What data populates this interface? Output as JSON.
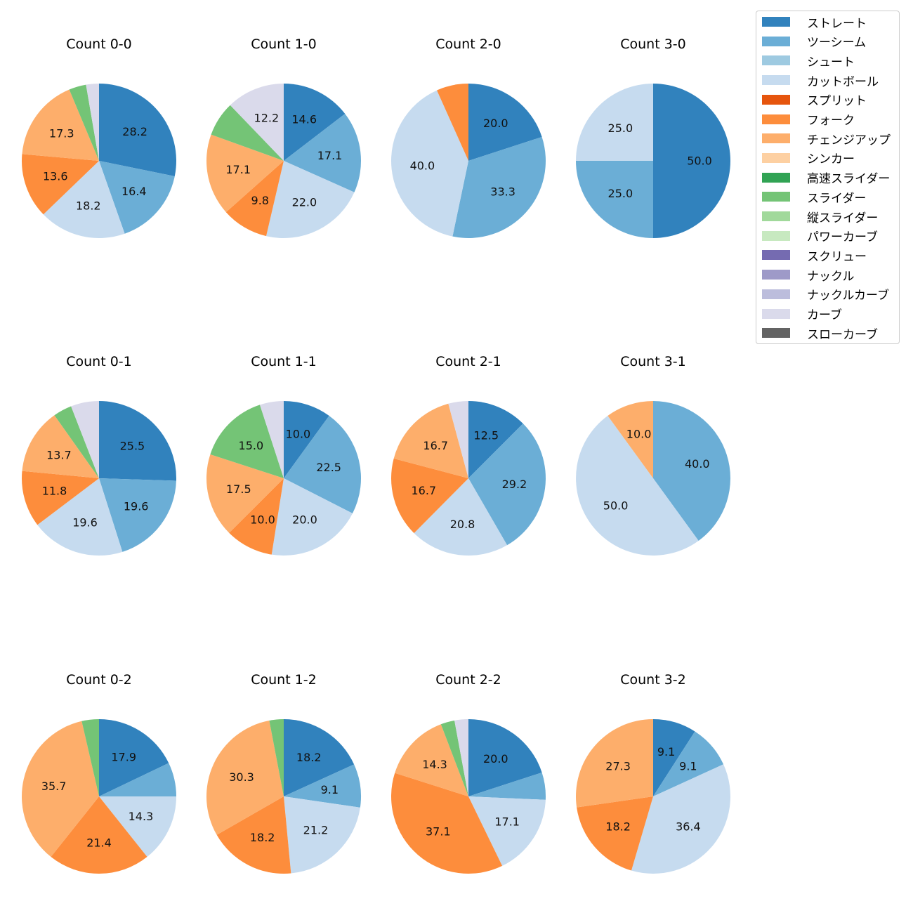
{
  "chart_data": {
    "type": "pie",
    "legend": {
      "placement": "top-right",
      "entries": [
        {
          "label": "ストレート",
          "color": "#3182bd"
        },
        {
          "label": "ツーシーム",
          "color": "#6baed6"
        },
        {
          "label": "シュート",
          "color": "#9ecae1"
        },
        {
          "label": "カットボール",
          "color": "#c6dbef"
        },
        {
          "label": "スプリット",
          "color": "#e6550d"
        },
        {
          "label": "フォーク",
          "color": "#fd8d3c"
        },
        {
          "label": "チェンジアップ",
          "color": "#fdae6b"
        },
        {
          "label": "シンカー",
          "color": "#fdd0a2"
        },
        {
          "label": "高速スライダー",
          "color": "#31a354"
        },
        {
          "label": "スライダー",
          "color": "#74c476"
        },
        {
          "label": "縦スライダー",
          "color": "#a1d99b"
        },
        {
          "label": "パワーカーブ",
          "color": "#c7e9c0"
        },
        {
          "label": "スクリュー",
          "color": "#756bb1"
        },
        {
          "label": "ナックル",
          "color": "#9e9ac8"
        },
        {
          "label": "ナックルカーブ",
          "color": "#bcbddc"
        },
        {
          "label": "カーブ",
          "color": "#dadaeb"
        },
        {
          "label": "スローカーブ",
          "color": "#636363"
        }
      ]
    },
    "pies": [
      {
        "title": "Count 0-0",
        "slices": [
          {
            "pitch": "ストレート",
            "value": 28.2,
            "label": "28.2"
          },
          {
            "pitch": "ツーシーム",
            "value": 16.4,
            "label": "16.4"
          },
          {
            "pitch": "カットボール",
            "value": 18.2,
            "label": "18.2"
          },
          {
            "pitch": "フォーク",
            "value": 13.6,
            "label": "13.6"
          },
          {
            "pitch": "チェンジアップ",
            "value": 17.3,
            "label": "17.3"
          },
          {
            "pitch": "スライダー",
            "value": 3.6,
            "label": ""
          },
          {
            "pitch": "カーブ",
            "value": 2.7,
            "label": ""
          }
        ]
      },
      {
        "title": "Count 1-0",
        "slices": [
          {
            "pitch": "ストレート",
            "value": 14.6,
            "label": "14.6"
          },
          {
            "pitch": "ツーシーム",
            "value": 17.1,
            "label": "17.1"
          },
          {
            "pitch": "カットボール",
            "value": 22.0,
            "label": "22.0"
          },
          {
            "pitch": "フォーク",
            "value": 9.8,
            "label": "9.8"
          },
          {
            "pitch": "チェンジアップ",
            "value": 17.1,
            "label": "17.1"
          },
          {
            "pitch": "スライダー",
            "value": 7.3,
            "label": ""
          },
          {
            "pitch": "カーブ",
            "value": 12.2,
            "label": "12.2"
          }
        ]
      },
      {
        "title": "Count 2-0",
        "slices": [
          {
            "pitch": "ストレート",
            "value": 20.0,
            "label": "20.0"
          },
          {
            "pitch": "ツーシーム",
            "value": 33.3,
            "label": "33.3"
          },
          {
            "pitch": "カットボール",
            "value": 40.0,
            "label": "40.0"
          },
          {
            "pitch": "フォーク",
            "value": 6.7,
            "label": ""
          }
        ]
      },
      {
        "title": "Count 3-0",
        "slices": [
          {
            "pitch": "ストレート",
            "value": 50.0,
            "label": "50.0"
          },
          {
            "pitch": "ツーシーム",
            "value": 25.0,
            "label": "25.0"
          },
          {
            "pitch": "カットボール",
            "value": 25.0,
            "label": "25.0"
          }
        ]
      },
      {
        "title": "Count 0-1",
        "slices": [
          {
            "pitch": "ストレート",
            "value": 25.5,
            "label": "25.5"
          },
          {
            "pitch": "ツーシーム",
            "value": 19.6,
            "label": "19.6"
          },
          {
            "pitch": "カットボール",
            "value": 19.6,
            "label": "19.6"
          },
          {
            "pitch": "フォーク",
            "value": 11.8,
            "label": "11.8"
          },
          {
            "pitch": "チェンジアップ",
            "value": 13.7,
            "label": "13.7"
          },
          {
            "pitch": "スライダー",
            "value": 3.9,
            "label": ""
          },
          {
            "pitch": "カーブ",
            "value": 5.9,
            "label": ""
          }
        ]
      },
      {
        "title": "Count 1-1",
        "slices": [
          {
            "pitch": "ストレート",
            "value": 10.0,
            "label": "10.0"
          },
          {
            "pitch": "ツーシーム",
            "value": 22.5,
            "label": "22.5"
          },
          {
            "pitch": "カットボール",
            "value": 20.0,
            "label": "20.0"
          },
          {
            "pitch": "フォーク",
            "value": 10.0,
            "label": "10.0"
          },
          {
            "pitch": "チェンジアップ",
            "value": 17.5,
            "label": "17.5"
          },
          {
            "pitch": "スライダー",
            "value": 15.0,
            "label": "15.0"
          },
          {
            "pitch": "カーブ",
            "value": 5.0,
            "label": ""
          }
        ]
      },
      {
        "title": "Count 2-1",
        "slices": [
          {
            "pitch": "ストレート",
            "value": 12.5,
            "label": "12.5"
          },
          {
            "pitch": "ツーシーム",
            "value": 29.2,
            "label": "29.2"
          },
          {
            "pitch": "カットボール",
            "value": 20.8,
            "label": "20.8"
          },
          {
            "pitch": "フォーク",
            "value": 16.7,
            "label": "16.7"
          },
          {
            "pitch": "チェンジアップ",
            "value": 16.7,
            "label": "16.7"
          },
          {
            "pitch": "カーブ",
            "value": 4.2,
            "label": ""
          }
        ]
      },
      {
        "title": "Count 3-1",
        "slices": [
          {
            "pitch": "ツーシーム",
            "value": 40.0,
            "label": "40.0"
          },
          {
            "pitch": "カットボール",
            "value": 50.0,
            "label": "50.0"
          },
          {
            "pitch": "チェンジアップ",
            "value": 10.0,
            "label": "10.0"
          }
        ]
      },
      {
        "title": "Count 0-2",
        "slices": [
          {
            "pitch": "ストレート",
            "value": 17.9,
            "label": "17.9"
          },
          {
            "pitch": "ツーシーム",
            "value": 7.1,
            "label": ""
          },
          {
            "pitch": "カットボール",
            "value": 14.3,
            "label": "14.3"
          },
          {
            "pitch": "フォーク",
            "value": 21.4,
            "label": "21.4"
          },
          {
            "pitch": "チェンジアップ",
            "value": 35.7,
            "label": "35.7"
          },
          {
            "pitch": "スライダー",
            "value": 3.6,
            "label": ""
          }
        ]
      },
      {
        "title": "Count 1-2",
        "slices": [
          {
            "pitch": "ストレート",
            "value": 18.2,
            "label": "18.2"
          },
          {
            "pitch": "ツーシーム",
            "value": 9.1,
            "label": "9.1"
          },
          {
            "pitch": "カットボール",
            "value": 21.2,
            "label": "21.2"
          },
          {
            "pitch": "フォーク",
            "value": 18.2,
            "label": "18.2"
          },
          {
            "pitch": "チェンジアップ",
            "value": 30.3,
            "label": "30.3"
          },
          {
            "pitch": "スライダー",
            "value": 3.0,
            "label": ""
          }
        ]
      },
      {
        "title": "Count 2-2",
        "slices": [
          {
            "pitch": "ストレート",
            "value": 20.0,
            "label": "20.0"
          },
          {
            "pitch": "ツーシーム",
            "value": 5.7,
            "label": ""
          },
          {
            "pitch": "カットボール",
            "value": 17.1,
            "label": "17.1"
          },
          {
            "pitch": "フォーク",
            "value": 37.1,
            "label": "37.1"
          },
          {
            "pitch": "チェンジアップ",
            "value": 14.3,
            "label": "14.3"
          },
          {
            "pitch": "スライダー",
            "value": 2.9,
            "label": ""
          },
          {
            "pitch": "カーブ",
            "value": 2.9,
            "label": ""
          }
        ]
      },
      {
        "title": "Count 3-2",
        "slices": [
          {
            "pitch": "ストレート",
            "value": 9.1,
            "label": "9.1"
          },
          {
            "pitch": "ツーシーム",
            "value": 9.1,
            "label": "9.1"
          },
          {
            "pitch": "カットボール",
            "value": 36.4,
            "label": "36.4"
          },
          {
            "pitch": "フォーク",
            "value": 18.2,
            "label": "18.2"
          },
          {
            "pitch": "チェンジアップ",
            "value": 27.3,
            "label": "27.3"
          }
        ]
      }
    ]
  }
}
